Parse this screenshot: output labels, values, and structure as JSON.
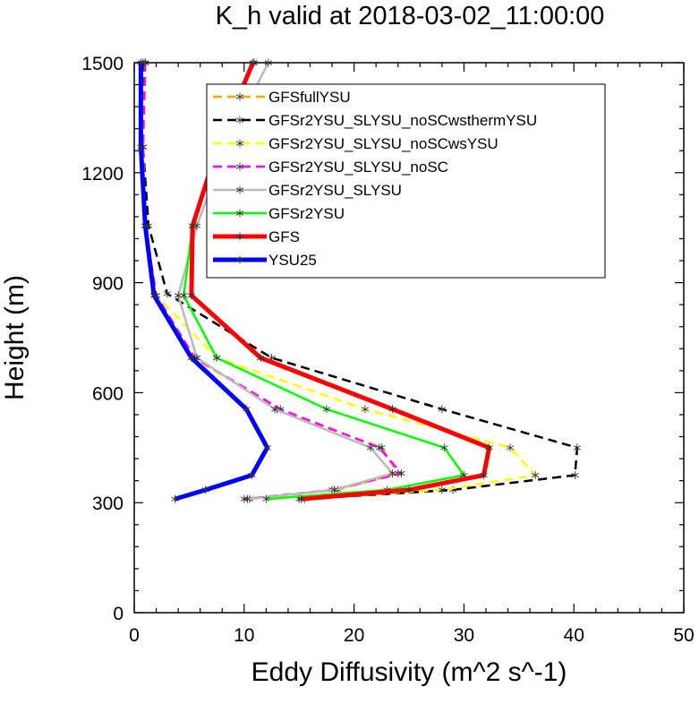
{
  "chart_data": {
    "type": "line",
    "title": "K_h valid at 2018-03-02_11:00:00",
    "xlabel": "Eddy Diffusivity (m^2 s^-1)",
    "ylabel": "Height (m)",
    "xlim": [
      0,
      50
    ],
    "ylim": [
      0,
      1500
    ],
    "xticks": [
      "0",
      "10",
      "20",
      "30",
      "40",
      "50"
    ],
    "yticks": [
      "0",
      "300",
      "600",
      "900",
      "1200",
      "1500"
    ],
    "legend_position": "top-center",
    "grid": false,
    "series": [
      {
        "name": "GFSfullYSU",
        "color": "#ffa500",
        "dash": "dashed",
        "width": 2.5,
        "points": [
          [
            1.0,
            1500
          ],
          [
            0.8,
            1270
          ],
          [
            1.0,
            1055
          ],
          [
            2.0,
            865
          ],
          [
            5.5,
            695
          ],
          [
            13.0,
            555
          ],
          [
            22.5,
            450
          ],
          [
            24.0,
            380
          ],
          [
            18.5,
            335
          ],
          [
            10.5,
            310
          ]
        ]
      },
      {
        "name": "GFSr2YSU_SLYSU_noSCwsthermYSU",
        "color": "#000000",
        "dash": "dashed",
        "width": 2.5,
        "points": [
          [
            0.8,
            1500
          ],
          [
            0.8,
            1270
          ],
          [
            1.3,
            1055
          ],
          [
            3.0,
            870
          ],
          [
            12.5,
            695
          ],
          [
            28.0,
            555
          ],
          [
            40.3,
            450
          ],
          [
            40.1,
            375
          ],
          [
            29.0,
            335
          ],
          [
            15.5,
            310
          ]
        ]
      },
      {
        "name": "GFSr2YSU_SLYSU_noSCwsYSU",
        "color": "#ffff00",
        "dash": "dashed",
        "width": 2.5,
        "points": [
          [
            1.0,
            1500
          ],
          [
            0.8,
            1270
          ],
          [
            1.0,
            1055
          ],
          [
            2.0,
            865
          ],
          [
            7.5,
            695
          ],
          [
            21.0,
            555
          ],
          [
            34.2,
            450
          ],
          [
            36.5,
            375
          ],
          [
            28.0,
            335
          ],
          [
            15.0,
            310
          ]
        ]
      },
      {
        "name": "GFSr2YSU_SLYSU_noSC",
        "color": "#ff00ff",
        "dash": "dashed",
        "width": 2.5,
        "points": [
          [
            1.0,
            1500
          ],
          [
            0.8,
            1270
          ],
          [
            1.0,
            1055
          ],
          [
            2.0,
            865
          ],
          [
            5.5,
            695
          ],
          [
            13.3,
            555
          ],
          [
            22.3,
            450
          ],
          [
            24.3,
            380
          ],
          [
            18.0,
            335
          ],
          [
            10.0,
            310
          ]
        ]
      },
      {
        "name": "GFSr2YSU_SLYSU",
        "color": "#bbbbbb",
        "dash": "solid",
        "width": 2.5,
        "points": [
          [
            12.2,
            1500
          ],
          [
            8.3,
            1270
          ],
          [
            5.7,
            1055
          ],
          [
            4.0,
            865
          ],
          [
            5.7,
            695
          ],
          [
            12.8,
            555
          ],
          [
            21.5,
            450
          ],
          [
            23.5,
            380
          ],
          [
            18.2,
            335
          ],
          [
            10.3,
            310
          ]
        ]
      },
      {
        "name": "GFSr2YSU",
        "color": "#00ff00",
        "dash": "solid",
        "width": 2.5,
        "points": [
          [
            10.9,
            1500
          ],
          [
            7.5,
            1270
          ],
          [
            5.3,
            1055
          ],
          [
            4.5,
            865
          ],
          [
            7.5,
            695
          ],
          [
            17.5,
            555
          ],
          [
            28.2,
            450
          ],
          [
            30.0,
            375
          ],
          [
            23.0,
            335
          ],
          [
            12.0,
            310
          ]
        ]
      },
      {
        "name": "GFS",
        "color": "#ff0000",
        "dash": "solid",
        "width": 5,
        "points": [
          [
            10.8,
            1500
          ],
          [
            7.6,
            1270
          ],
          [
            5.3,
            1055
          ],
          [
            5.2,
            865
          ],
          [
            11.5,
            695
          ],
          [
            23.5,
            555
          ],
          [
            32.3,
            450
          ],
          [
            31.8,
            375
          ],
          [
            25.0,
            335
          ],
          [
            15.2,
            310
          ]
        ]
      },
      {
        "name": "YSU25",
        "color": "#0000ff",
        "dash": "solid",
        "width": 5,
        "points": [
          [
            0.6,
            1500
          ],
          [
            0.6,
            1270
          ],
          [
            1.0,
            1055
          ],
          [
            1.8,
            865
          ],
          [
            5.2,
            695
          ],
          [
            10.2,
            555
          ],
          [
            12.1,
            450
          ],
          [
            10.7,
            375
          ],
          [
            6.5,
            335
          ],
          [
            3.7,
            310
          ]
        ]
      }
    ]
  }
}
